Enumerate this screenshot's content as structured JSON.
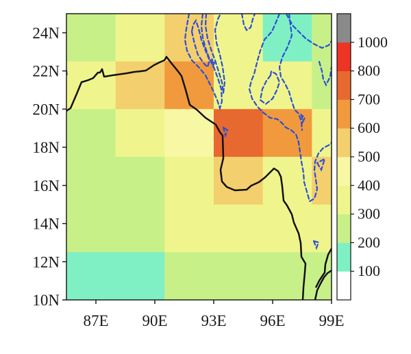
{
  "map": {
    "lon_range": [
      85.5,
      99.0
    ],
    "lat_range": [
      10.0,
      25.0
    ],
    "grid_cell_deg": 2.5,
    "x_ticks": [
      {
        "lon": 87,
        "label": "87E"
      },
      {
        "lon": 90,
        "label": "90E"
      },
      {
        "lon": 93,
        "label": "93E"
      },
      {
        "lon": 96,
        "label": "96E"
      },
      {
        "lon": 99,
        "label": "99E"
      }
    ],
    "y_ticks": [
      {
        "lat": 10,
        "label": "10N"
      },
      {
        "lat": 12,
        "label": "12N"
      },
      {
        "lat": 14,
        "label": "14N"
      },
      {
        "lat": 16,
        "label": "16N"
      },
      {
        "lat": 18,
        "label": "18N"
      },
      {
        "lat": 20,
        "label": "20N"
      },
      {
        "lat": 22,
        "label": "22N"
      },
      {
        "lat": 24,
        "label": "24N"
      }
    ],
    "coastline_color": "#111111",
    "contour_color": "#2a4fd6",
    "colorbar": {
      "bounds": [
        0,
        100,
        200,
        300,
        400,
        500,
        600,
        700,
        800,
        1000,
        1100
      ],
      "labels": [
        "100",
        "200",
        "300",
        "400",
        "500",
        "600",
        "700",
        "800",
        "1000"
      ],
      "colors": [
        "#ffffff",
        "#7ff0c4",
        "#c8f089",
        "#eff58c",
        "#f8f7a4",
        "#f3cf6e",
        "#f19a3d",
        "#e8692f",
        "#ee3424",
        "#8a8a8a"
      ]
    }
  },
  "chart_data": {
    "type": "heatmap",
    "x_unit": "degrees East",
    "y_unit": "degrees North",
    "cell_size_deg": 2.5,
    "cells": [
      {
        "lon": 85.5,
        "lat": 22.5,
        "value": 250
      },
      {
        "lon": 85.5,
        "lat": 20.0,
        "value": 330
      },
      {
        "lon": 85.5,
        "lat": 17.5,
        "value": 270
      },
      {
        "lon": 85.5,
        "lat": 15.0,
        "value": 270
      },
      {
        "lon": 85.5,
        "lat": 12.5,
        "value": 270
      },
      {
        "lon": 85.5,
        "lat": 10.0,
        "value": 150
      },
      {
        "lon": 88.0,
        "lat": 22.5,
        "value": 350
      },
      {
        "lon": 88.0,
        "lat": 20.0,
        "value": 520
      },
      {
        "lon": 88.0,
        "lat": 17.5,
        "value": 380
      },
      {
        "lon": 88.0,
        "lat": 15.0,
        "value": 280
      },
      {
        "lon": 88.0,
        "lat": 12.5,
        "value": 280
      },
      {
        "lon": 88.0,
        "lat": 10.0,
        "value": 150
      },
      {
        "lon": 90.5,
        "lat": 22.5,
        "value": 560
      },
      {
        "lon": 90.5,
        "lat": 20.0,
        "value": 650
      },
      {
        "lon": 90.5,
        "lat": 17.5,
        "value": 420
      },
      {
        "lon": 90.5,
        "lat": 15.0,
        "value": 330
      },
      {
        "lon": 90.5,
        "lat": 12.5,
        "value": 330
      },
      {
        "lon": 90.5,
        "lat": 10.0,
        "value": 270
      },
      {
        "lon": 93.0,
        "lat": 22.5,
        "value": 350
      },
      {
        "lon": 93.0,
        "lat": 20.0,
        "value": 380
      },
      {
        "lon": 93.0,
        "lat": 17.5,
        "value": 730
      },
      {
        "lon": 93.0,
        "lat": 15.0,
        "value": 520
      },
      {
        "lon": 93.0,
        "lat": 12.5,
        "value": 330
      },
      {
        "lon": 93.0,
        "lat": 10.0,
        "value": 270
      },
      {
        "lon": 95.5,
        "lat": 22.5,
        "value": 150
      },
      {
        "lon": 95.5,
        "lat": 20.0,
        "value": 380
      },
      {
        "lon": 95.5,
        "lat": 17.5,
        "value": 650
      },
      {
        "lon": 95.5,
        "lat": 15.0,
        "value": 330
      },
      {
        "lon": 95.5,
        "lat": 12.5,
        "value": 330
      },
      {
        "lon": 95.5,
        "lat": 10.0,
        "value": 270
      },
      {
        "lon": 98.0,
        "lat": 22.5,
        "value": 270
      },
      {
        "lon": 98.0,
        "lat": 20.0,
        "value": 270
      },
      {
        "lon": 98.0,
        "lat": 17.5,
        "value": 380
      },
      {
        "lon": 98.0,
        "lat": 15.0,
        "value": 520
      },
      {
        "lon": 98.0,
        "lat": 12.5,
        "value": 330
      },
      {
        "lon": 98.0,
        "lat": 10.0,
        "value": 270
      }
    ],
    "ylim": [
      10,
      25
    ],
    "xlim": [
      85.5,
      99.0
    ],
    "legend": "colorbar right"
  }
}
